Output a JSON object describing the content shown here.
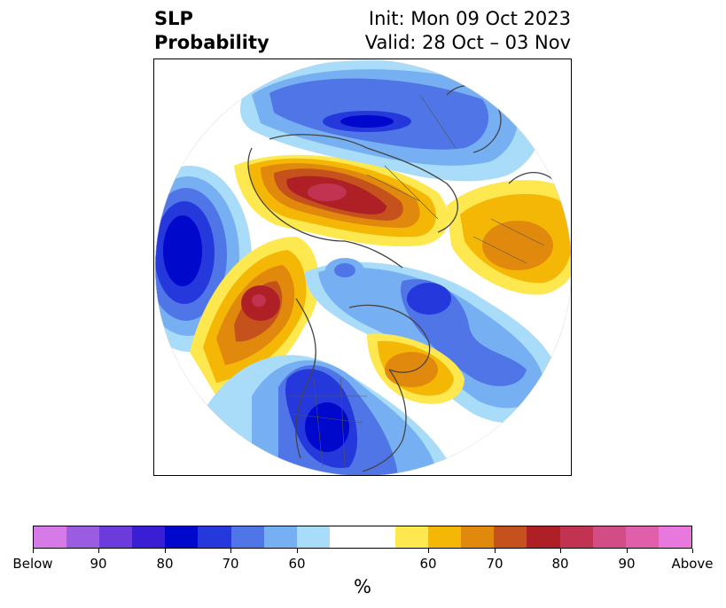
{
  "header": {
    "title_line1": "SLP",
    "title_line2": "Probability",
    "init_text": "Init: Mon 09 Oct 2023",
    "valid_text": "Valid: 28 Oct – 03 Nov"
  },
  "map": {
    "projection": "north-polar-stereographic",
    "variable": "SLP probability",
    "regions": [
      {
        "name": "north-pacific-below",
        "category": "below",
        "peak_percent": 80
      },
      {
        "name": "alaska-gulf-above",
        "category": "above",
        "peak_percent": 80
      },
      {
        "name": "western-us-below",
        "category": "below",
        "peak_percent": 80
      },
      {
        "name": "siberia-above",
        "category": "above",
        "peak_percent": 80
      },
      {
        "name": "scandinavia-below",
        "category": "below",
        "peak_percent": 70
      },
      {
        "name": "europe-above",
        "category": "above",
        "peak_percent": 70
      },
      {
        "name": "greenland-below",
        "category": "below",
        "peak_percent": 70
      },
      {
        "name": "eastern-canada-above",
        "category": "above",
        "peak_percent": 70
      }
    ]
  },
  "colorbar": {
    "colors": [
      "#d57ae6",
      "#9a5ce0",
      "#6b3cdb",
      "#3a1ed6",
      "#0008cc",
      "#2438dc",
      "#4f75e6",
      "#77b0f2",
      "#a9dcf8",
      "#ffffff",
      "#ffffff",
      "#fde84f",
      "#f5b705",
      "#e1890d",
      "#c5521c",
      "#af2026",
      "#c23352",
      "#d24c85",
      "#df5fab",
      "#e878dd"
    ],
    "tick_labels": [
      "Below",
      "90",
      "80",
      "70",
      "60",
      "60",
      "70",
      "80",
      "90",
      "Above"
    ],
    "unit_label": "%"
  }
}
